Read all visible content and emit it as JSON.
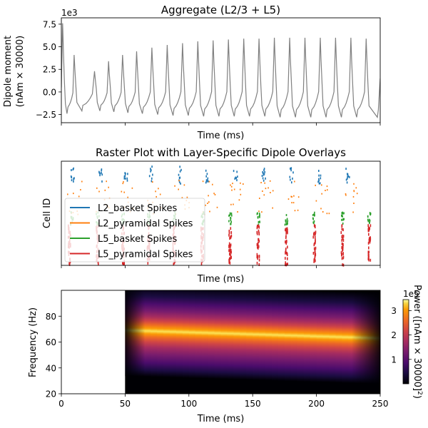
{
  "chart_data": [
    {
      "type": "line",
      "title": "Aggregate (L2/3 + L5)",
      "xlabel": "Time (ms)",
      "ylabel_line1": "Dipole moment",
      "ylabel_line2": "(nAm × 30000)",
      "offset_label": "1e3",
      "xlim": [
        0,
        250
      ],
      "ylim": [
        -3.4,
        8.2
      ],
      "yticks": [
        -2.5,
        0.0,
        2.5,
        5.0,
        7.5
      ],
      "ytick_labels": [
        "−2.5",
        "0.0",
        "2.5",
        "5.0",
        "7.5"
      ],
      "color": "#808080",
      "peak_times": [
        1,
        10,
        26,
        37,
        48,
        59,
        71,
        83,
        95,
        107,
        119,
        131,
        143,
        155,
        167,
        179,
        191,
        203,
        215,
        227,
        239
      ],
      "peak_values": [
        7.6,
        4.1,
        2.3,
        3.4,
        4.1,
        4.5,
        4.9,
        5.2,
        5.4,
        5.6,
        5.7,
        5.8,
        5.9,
        5.9,
        6.0,
        6.0,
        6.0,
        6.0,
        6.0,
        6.0,
        5.9
      ],
      "trough_values": [
        -2.4,
        -2.1,
        -2.1,
        -2.2,
        -2.3,
        -2.4,
        -2.5,
        -2.6,
        -2.6,
        -2.7,
        -2.7,
        -2.7,
        -2.7,
        -2.7,
        -2.8,
        -2.8,
        -2.8,
        -2.8,
        -2.8,
        -2.8,
        -2.8
      ],
      "end_value": 1.5
    },
    {
      "type": "scatter",
      "title": "Raster Plot with Layer-Specific Dipole Overlays",
      "xlabel": "Time (ms)",
      "ylabel": "Cell ID",
      "xlim": [
        0,
        250
      ],
      "series": [
        {
          "name": "L2_basket Spikes",
          "color": "#1f77b4",
          "burst_times": [
            8,
            30,
            50,
            70,
            92,
            114,
            136,
            158,
            180,
            202,
            224
          ]
        },
        {
          "name": "L2_pyramidal Spikes",
          "color": "#ff7f0e",
          "burst_times": [
            8,
            30,
            50,
            70,
            92,
            114,
            136,
            158,
            180,
            202,
            224
          ]
        },
        {
          "name": "L5_basket Spikes",
          "color": "#2ca02c",
          "burst_times": [
            8,
            28,
            48,
            68,
            88,
            110,
            132,
            154,
            176,
            198,
            220,
            241
          ]
        },
        {
          "name": "L5_pyramidal Spikes",
          "color": "#d62728",
          "burst_times": [
            6,
            28,
            48,
            68,
            88,
            110,
            132,
            154,
            176,
            198,
            220,
            241
          ]
        }
      ]
    },
    {
      "type": "heatmap",
      "xlabel": "Time (ms)",
      "ylabel": "Frequency (Hz)",
      "xlim": [
        0,
        250
      ],
      "ylim": [
        20,
        100
      ],
      "xticks": [
        0,
        50,
        100,
        150,
        200,
        250
      ],
      "yticks": [
        20,
        40,
        60,
        80
      ],
      "data_start_time": 50,
      "peak_frequency_start": 69,
      "peak_frequency_end": 63,
      "colorbar": {
        "label": "Power ([nAm × 30000]",
        "label_sup": "2",
        "label_close": ")",
        "offset_label": "1e5",
        "range": [
          0,
          3.45
        ],
        "ticks": [
          1,
          2,
          3
        ],
        "colormap": "inferno"
      }
    }
  ]
}
